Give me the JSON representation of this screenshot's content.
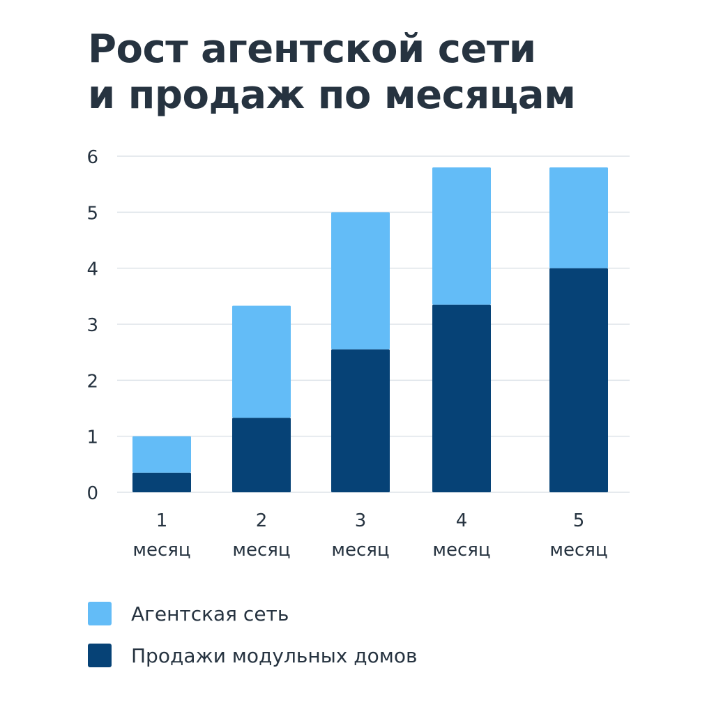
{
  "chart_data": {
    "type": "bar",
    "stacked": true,
    "title_lines": [
      "Рост агентской сети",
      "и продаж по месяцам"
    ],
    "categories": [
      [
        "1",
        "месяц"
      ],
      [
        "2",
        "месяц"
      ],
      [
        "3",
        "месяц"
      ],
      [
        "4",
        "месяц"
      ],
      [
        "5",
        "месяц"
      ]
    ],
    "series": [
      {
        "name": "Продажи модульных домов",
        "values": [
          0.35,
          1.33,
          2.55,
          3.35,
          4.0
        ],
        "color": "#064276"
      },
      {
        "name": "Агентская сеть",
        "values": [
          0.65,
          2.0,
          2.45,
          2.45,
          1.8
        ],
        "color": "#63bcf7"
      }
    ],
    "ylim": [
      0,
      6
    ],
    "yticks": [
      0,
      1,
      2,
      3,
      4,
      5,
      6
    ],
    "grid": true,
    "legend": {
      "placement": "bottom-left",
      "order": [
        "Агентская сеть",
        "Продажи модульных домов"
      ]
    }
  }
}
